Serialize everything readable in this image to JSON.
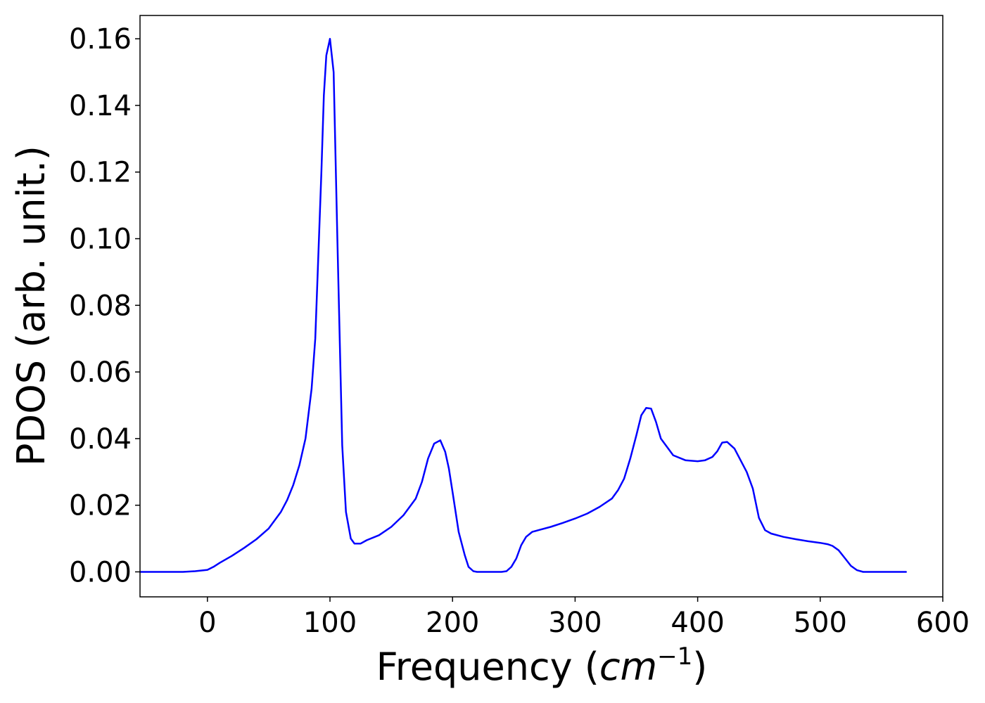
{
  "chart_data": {
    "type": "line",
    "title": "",
    "xlabel_text": "Frequency (",
    "xlabel_unit": "cm",
    "xlabel_exponent": "−1",
    "xlabel_close": ")",
    "ylabel": "PDOS (arb. unit.)",
    "xlim": [
      -55,
      600
    ],
    "ylim": [
      -0.0075,
      0.167
    ],
    "xticks": [
      0,
      100,
      200,
      300,
      400,
      500,
      600
    ],
    "xtick_labels": [
      "0",
      "100",
      "200",
      "300",
      "400",
      "500",
      "600"
    ],
    "yticks": [
      0.0,
      0.02,
      0.04,
      0.06,
      0.08,
      0.1,
      0.12,
      0.14,
      0.16
    ],
    "ytick_labels": [
      "0.00",
      "0.02",
      "0.04",
      "0.06",
      "0.08",
      "0.10",
      "0.12",
      "0.14",
      "0.16"
    ],
    "grid": false,
    "legend": "none",
    "series": [
      {
        "color": "#0000ff",
        "x": [
          -55,
          -20,
          -10,
          0,
          5,
          10,
          20,
          30,
          40,
          50,
          60,
          65,
          70,
          75,
          80,
          85,
          88,
          90,
          93,
          95,
          97,
          100,
          103,
          106,
          110,
          113,
          117,
          120,
          125,
          130,
          140,
          150,
          160,
          170,
          175,
          180,
          185,
          190,
          194,
          197,
          200,
          205,
          210,
          213,
          217,
          220,
          230,
          240,
          244,
          248,
          252,
          256,
          260,
          265,
          270,
          280,
          290,
          300,
          310,
          320,
          330,
          335,
          340,
          345,
          350,
          354,
          358,
          362,
          366,
          370,
          380,
          390,
          400,
          406,
          412,
          416,
          420,
          424,
          430,
          440,
          445,
          450,
          455,
          460,
          470,
          480,
          490,
          500,
          506,
          510,
          515,
          520,
          525,
          530,
          535,
          540,
          570
        ],
        "y": [
          0.0,
          0.0,
          0.0002,
          0.0006,
          0.0015,
          0.0027,
          0.0048,
          0.0072,
          0.0098,
          0.013,
          0.018,
          0.0215,
          0.026,
          0.032,
          0.04,
          0.055,
          0.07,
          0.09,
          0.12,
          0.143,
          0.155,
          0.16,
          0.15,
          0.1,
          0.038,
          0.018,
          0.01,
          0.0085,
          0.0085,
          0.0095,
          0.011,
          0.0135,
          0.017,
          0.022,
          0.027,
          0.034,
          0.0385,
          0.0395,
          0.036,
          0.031,
          0.024,
          0.012,
          0.005,
          0.0015,
          0.0002,
          0.0,
          0.0,
          0.0,
          0.0002,
          0.0015,
          0.004,
          0.008,
          0.0105,
          0.012,
          0.0125,
          0.0135,
          0.0147,
          0.016,
          0.0175,
          0.0195,
          0.022,
          0.0245,
          0.028,
          0.034,
          0.041,
          0.047,
          0.0492,
          0.049,
          0.045,
          0.04,
          0.035,
          0.0335,
          0.0332,
          0.0335,
          0.0345,
          0.0362,
          0.0388,
          0.039,
          0.037,
          0.03,
          0.025,
          0.0162,
          0.0125,
          0.0115,
          0.0105,
          0.0098,
          0.0092,
          0.0087,
          0.0083,
          0.0078,
          0.0065,
          0.0042,
          0.0018,
          0.0005,
          0.0,
          0.0,
          0.0
        ]
      }
    ]
  }
}
